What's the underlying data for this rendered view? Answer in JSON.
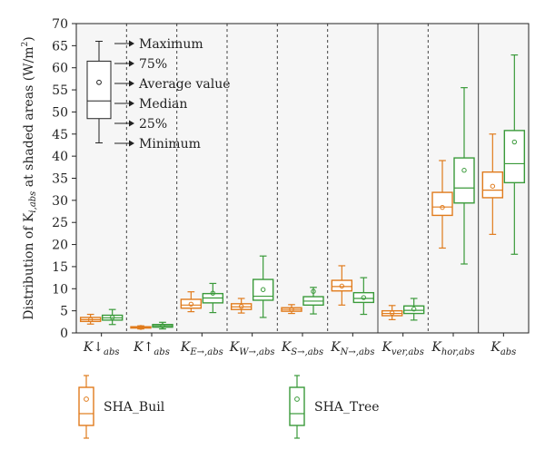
{
  "chart_data": {
    "type": "box",
    "ylabel_prefix": "Distribution of K",
    "ylabel_sub": "i,abs",
    "ylabel_suffix": " at shaded areas (W/m",
    "ylabel_sup": "2",
    "ylabel_close": ")",
    "ylim": [
      0,
      70
    ],
    "yticks": [
      0,
      5,
      10,
      15,
      20,
      25,
      30,
      35,
      40,
      45,
      50,
      55,
      60,
      65,
      70
    ],
    "categories": [
      {
        "main": "K↓",
        "sub": "abs"
      },
      {
        "main": "K↑",
        "sub": "abs"
      },
      {
        "main": "K",
        "sub": "E→,abs"
      },
      {
        "main": "K",
        "sub": "W→,abs"
      },
      {
        "main": "K",
        "sub": "S→,abs"
      },
      {
        "main": "K",
        "sub": "N→,abs"
      },
      {
        "main": "K",
        "sub": "ver,abs"
      },
      {
        "main": "K",
        "sub": "hor,abs"
      },
      {
        "main": "K",
        "sub": "abs"
      }
    ],
    "separators": [
      {
        "after": 0,
        "style": "dashed"
      },
      {
        "after": 1,
        "style": "dashed"
      },
      {
        "after": 2,
        "style": "dashed"
      },
      {
        "after": 3,
        "style": "dashed"
      },
      {
        "after": 4,
        "style": "dashed"
      },
      {
        "after": 5,
        "style": "solid"
      },
      {
        "after": 6,
        "style": "dashed"
      },
      {
        "after": 7,
        "style": "solid"
      }
    ],
    "series": [
      {
        "name": "SHA_Buil",
        "color": "#e07b1c",
        "boxes": [
          {
            "min": 2.0,
            "q1": 2.6,
            "median": 3.0,
            "q3": 3.5,
            "max": 4.2,
            "mean": 3.0
          },
          {
            "min": 0.9,
            "q1": 1.1,
            "median": 1.25,
            "q3": 1.4,
            "max": 1.6,
            "mean": 1.25
          },
          {
            "min": 4.8,
            "q1": 5.6,
            "median": 6.3,
            "q3": 7.6,
            "max": 9.3,
            "mean": 6.5
          },
          {
            "min": 4.5,
            "q1": 5.3,
            "median": 5.9,
            "q3": 6.6,
            "max": 7.8,
            "mean": 6.0
          },
          {
            "min": 4.4,
            "q1": 4.9,
            "median": 5.3,
            "q3": 5.7,
            "max": 6.4,
            "mean": 5.3
          },
          {
            "min": 6.3,
            "q1": 9.5,
            "median": 10.5,
            "q3": 11.9,
            "max": 15.2,
            "mean": 10.6
          },
          {
            "min": 3.0,
            "q1": 3.9,
            "median": 4.4,
            "q3": 5.0,
            "max": 6.2,
            "mean": 4.5
          },
          {
            "min": 19.2,
            "q1": 26.6,
            "median": 28.5,
            "q3": 31.8,
            "max": 39.0,
            "mean": 28.4
          },
          {
            "min": 22.3,
            "q1": 30.6,
            "median": 32.3,
            "q3": 36.4,
            "max": 45.0,
            "mean": 33.2
          }
        ]
      },
      {
        "name": "SHA_Tree",
        "color": "#3a9a3a",
        "boxes": [
          {
            "min": 1.9,
            "q1": 2.9,
            "median": 3.4,
            "q3": 4.0,
            "max": 5.3,
            "mean": 3.5
          },
          {
            "min": 0.9,
            "q1": 1.3,
            "median": 1.6,
            "q3": 1.9,
            "max": 2.4,
            "mean": 1.6
          },
          {
            "min": 4.6,
            "q1": 6.8,
            "median": 7.9,
            "q3": 8.9,
            "max": 11.2,
            "mean": 9.0
          },
          {
            "min": 3.5,
            "q1": 7.4,
            "median": 8.3,
            "q3": 12.1,
            "max": 17.4,
            "mean": 9.8
          },
          {
            "min": 4.3,
            "q1": 6.3,
            "median": 7.2,
            "q3": 8.2,
            "max": 10.3,
            "mean": 9.4
          },
          {
            "min": 4.2,
            "q1": 6.9,
            "median": 7.8,
            "q3": 9.1,
            "max": 12.5,
            "mean": 8.0
          },
          {
            "min": 2.9,
            "q1": 4.4,
            "median": 5.1,
            "q3": 6.1,
            "max": 7.8,
            "mean": 5.4
          },
          {
            "min": 15.6,
            "q1": 29.4,
            "median": 32.8,
            "q3": 39.6,
            "max": 55.5,
            "mean": 36.8
          },
          {
            "min": 17.8,
            "q1": 34.0,
            "median": 38.3,
            "q3": 45.8,
            "max": 62.9,
            "mean": 43.2
          }
        ]
      }
    ],
    "key_box": {
      "min": 43,
      "q1": 48.5,
      "median": 52.5,
      "q3": 61.5,
      "max": 66,
      "mean": 56.7
    },
    "key_labels": [
      "Maximum",
      "75%",
      "Average value",
      "Median",
      "25%",
      "Minimum"
    ],
    "legend_placement": "bottom"
  }
}
